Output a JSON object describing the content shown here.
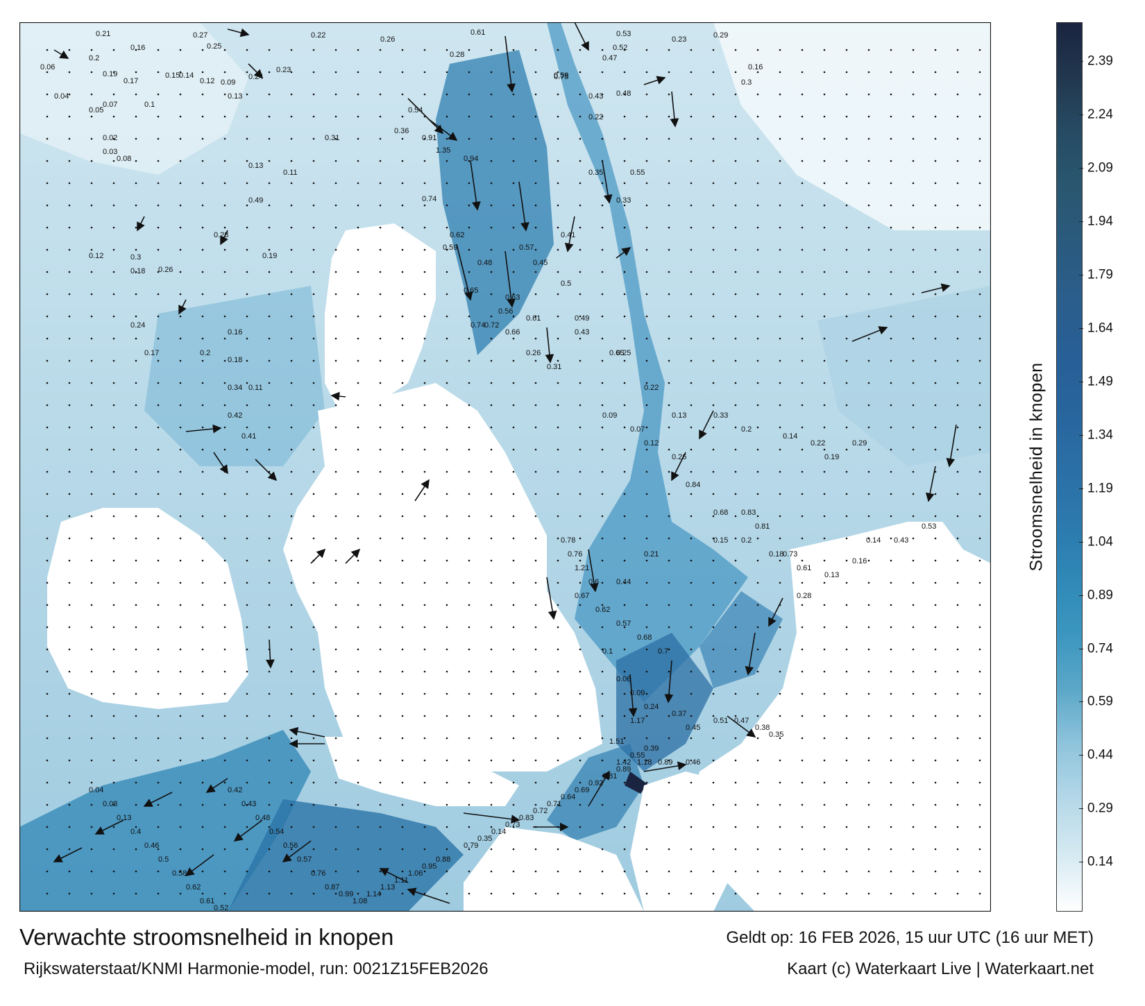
{
  "title": "Verwachte stroomsnelheid in knopen",
  "model_run": "Rijkswaterstaat/KNMI Harmonie-model, run: 0021Z15FEB2026",
  "valid_time": "Geldt op: 16 FEB 2026, 15 uur UTC (16 uur MET)",
  "credit": "Kaart (c) Waterkaart Live | Waterkaart.net",
  "colorbar": {
    "label": "Stroomsnelheid in knopen",
    "ticks": [
      "2.39",
      "2.24",
      "2.09",
      "1.94",
      "1.79",
      "1.64",
      "1.49",
      "1.34",
      "1.19",
      "1.04",
      "0.89",
      "0.74",
      "0.59",
      "0.44",
      "0.29",
      "0.14"
    ],
    "tick_values": [
      2.39,
      2.24,
      2.09,
      1.94,
      1.79,
      1.64,
      1.49,
      1.34,
      1.19,
      1.04,
      0.89,
      0.74,
      0.59,
      0.44,
      0.29,
      0.14
    ],
    "range": [
      0,
      2.5
    ],
    "colors": [
      "#ffffff",
      "#d6eaf2",
      "#b5d8e8",
      "#8fc4dc",
      "#5ba7c8",
      "#3b96bf",
      "#2f88b6",
      "#2c79ad",
      "#2a6fa5",
      "#28659d",
      "#275f96",
      "#2b5e8c",
      "#2a5a7e",
      "#2a5770",
      "#264c64",
      "#22384f",
      "#1a2440"
    ]
  },
  "speed_labels": [
    {
      "v": "0.21"
    },
    {
      "v": "0.27"
    },
    {
      "v": "0.26"
    },
    {
      "v": "0.61"
    },
    {
      "v": "0.53"
    },
    {
      "v": "0.23"
    },
    {
      "v": "0.29"
    },
    {
      "v": "0.16"
    },
    {
      "v": "0.2"
    },
    {
      "v": "0.22"
    },
    {
      "v": "0.25"
    },
    {
      "v": "0.24"
    },
    {
      "v": "0.23"
    },
    {
      "v": "0.28"
    },
    {
      "v": "0.47"
    },
    {
      "v": "0.52"
    },
    {
      "v": "0.16"
    },
    {
      "v": "0.06"
    },
    {
      "v": "0.19"
    },
    {
      "v": "0.17"
    },
    {
      "v": "0.15"
    },
    {
      "v": "0.14"
    },
    {
      "v": "0.12"
    },
    {
      "v": "0.09"
    },
    {
      "v": "0.3"
    },
    {
      "v": "0.59"
    },
    {
      "v": "0.75"
    },
    {
      "v": "0.43"
    },
    {
      "v": "0.48"
    },
    {
      "v": "0.22"
    },
    {
      "v": "0.04"
    },
    {
      "v": "0.13"
    },
    {
      "v": "0.07"
    },
    {
      "v": "0.05"
    },
    {
      "v": "0.1"
    },
    {
      "v": "0.36"
    },
    {
      "v": "0.91"
    },
    {
      "v": "1.35"
    },
    {
      "v": "0.94"
    },
    {
      "v": "0.54"
    },
    {
      "v": "0.02"
    },
    {
      "v": "0.03"
    },
    {
      "v": "0.08"
    },
    {
      "v": "0.11"
    },
    {
      "v": "0.31"
    },
    {
      "v": "0.74"
    },
    {
      "v": "0.62"
    },
    {
      "v": "0.35"
    },
    {
      "v": "0.55"
    },
    {
      "v": "0.41"
    },
    {
      "v": "0.13"
    },
    {
      "v": "0.49"
    },
    {
      "v": "0.33"
    },
    {
      "v": "0.59"
    },
    {
      "v": "0.48"
    },
    {
      "v": "0.57"
    },
    {
      "v": "0.45"
    },
    {
      "v": "0.63"
    },
    {
      "v": "0.12"
    },
    {
      "v": "0.18"
    },
    {
      "v": "0.26"
    },
    {
      "v": "0.28"
    },
    {
      "v": "0.19"
    },
    {
      "v": "0.3"
    },
    {
      "v": "0.65"
    },
    {
      "v": "0.56"
    },
    {
      "v": "0.74"
    },
    {
      "v": "0.66"
    },
    {
      "v": "0.5"
    },
    {
      "v": "0.49"
    },
    {
      "v": "0.24"
    },
    {
      "v": "0.17"
    },
    {
      "v": "0.2"
    },
    {
      "v": "0.34"
    },
    {
      "v": "0.72"
    },
    {
      "v": "0.61"
    },
    {
      "v": "0.43"
    },
    {
      "v": "0.26"
    },
    {
      "v": "0.31"
    },
    {
      "v": "0.25"
    },
    {
      "v": "0.16"
    },
    {
      "v": "0.18"
    },
    {
      "v": "0.11"
    },
    {
      "v": "0.42"
    },
    {
      "v": "0.41"
    },
    {
      "v": "0.65"
    },
    {
      "v": "0.22"
    },
    {
      "v": "0.13"
    },
    {
      "v": "0.33"
    },
    {
      "v": "0.2"
    },
    {
      "v": "0.14"
    },
    {
      "v": "0.22"
    },
    {
      "v": "0.19"
    },
    {
      "v": "0.29"
    },
    {
      "v": "0.78"
    },
    {
      "v": "0.76"
    },
    {
      "v": "1.21"
    },
    {
      "v": "0.6"
    },
    {
      "v": "0.44"
    },
    {
      "v": "0.21"
    },
    {
      "v": "0.09"
    },
    {
      "v": "0.07"
    },
    {
      "v": "0.12"
    },
    {
      "v": "0.26"
    },
    {
      "v": "0.84"
    },
    {
      "v": "0.68"
    },
    {
      "v": "0.83"
    },
    {
      "v": "0.81"
    },
    {
      "v": "0.73"
    },
    {
      "v": "0.61"
    },
    {
      "v": "0.13"
    },
    {
      "v": "0.16"
    },
    {
      "v": "0.14"
    },
    {
      "v": "0.43"
    },
    {
      "v": "0.53"
    },
    {
      "v": "0.67"
    },
    {
      "v": "0.62"
    },
    {
      "v": "0.57"
    },
    {
      "v": "0.68"
    },
    {
      "v": "0.7"
    },
    {
      "v": "0.15"
    },
    {
      "v": "0.2"
    },
    {
      "v": "0.18"
    },
    {
      "v": "0.28"
    },
    {
      "v": "1.17"
    },
    {
      "v": "1.51"
    },
    {
      "v": "1.42"
    },
    {
      "v": "1.18"
    },
    {
      "v": "0.89"
    },
    {
      "v": "0.46"
    },
    {
      "v": "0.1"
    },
    {
      "v": "0.06"
    },
    {
      "v": "0.09"
    },
    {
      "v": "0.24"
    },
    {
      "v": "0.37"
    },
    {
      "v": "0.45"
    },
    {
      "v": "0.51"
    },
    {
      "v": "0.47"
    },
    {
      "v": "0.38"
    },
    {
      "v": "0.35"
    },
    {
      "v": "0.04"
    },
    {
      "v": "0.08"
    },
    {
      "v": "0.13"
    },
    {
      "v": "0.4"
    },
    {
      "v": "0.46"
    },
    {
      "v": "0.5"
    },
    {
      "v": "0.58"
    },
    {
      "v": "0.62"
    },
    {
      "v": "0.61"
    },
    {
      "v": "0.52"
    },
    {
      "v": "0.42"
    },
    {
      "v": "0.43"
    },
    {
      "v": "0.48"
    },
    {
      "v": "0.54"
    },
    {
      "v": "0.56"
    },
    {
      "v": "0.57"
    },
    {
      "v": "0.76"
    },
    {
      "v": "0.87"
    },
    {
      "v": "0.99"
    },
    {
      "v": "1.08"
    },
    {
      "v": "1.14"
    },
    {
      "v": "1.13"
    },
    {
      "v": "1.11"
    },
    {
      "v": "1.06"
    },
    {
      "v": "0.95"
    },
    {
      "v": "0.88"
    },
    {
      "v": "0.79"
    },
    {
      "v": "0.35"
    },
    {
      "v": "0.14"
    },
    {
      "v": "0.73"
    },
    {
      "v": "0.83"
    },
    {
      "v": "0.72"
    },
    {
      "v": "0.71"
    },
    {
      "v": "0.64"
    },
    {
      "v": "0.69"
    },
    {
      "v": "0.92"
    },
    {
      "v": "0.81"
    },
    {
      "v": "0.89"
    },
    {
      "v": "0.55"
    },
    {
      "v": "0.39"
    }
  ]
}
